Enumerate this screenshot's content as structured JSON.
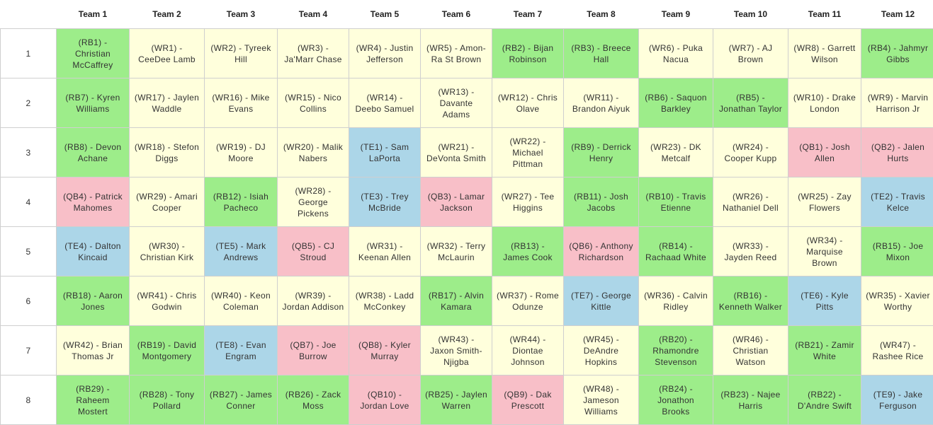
{
  "colors": {
    "WR": "#ffffdc",
    "RB": "#9ded8a",
    "TE": "#acd6e8",
    "QB": "#f8bfc8"
  },
  "teams": [
    "Team 1",
    "Team 2",
    "Team 3",
    "Team 4",
    "Team 5",
    "Team 6",
    "Team 7",
    "Team 8",
    "Team 9",
    "Team 10",
    "Team 11",
    "Team 12"
  ],
  "rounds": [
    {
      "label": "1",
      "picks": [
        {
          "text": "(RB1) - Christian McCaffrey",
          "pos": "RB"
        },
        {
          "text": "(WR1) - CeeDee Lamb",
          "pos": "WR"
        },
        {
          "text": "(WR2) - Tyreek Hill",
          "pos": "WR"
        },
        {
          "text": "(WR3) - Ja'Marr Chase",
          "pos": "WR"
        },
        {
          "text": "(WR4) - Justin Jefferson",
          "pos": "WR"
        },
        {
          "text": "(WR5) - Amon-Ra St Brown",
          "pos": "WR"
        },
        {
          "text": "(RB2) - Bijan Robinson",
          "pos": "RB"
        },
        {
          "text": "(RB3) - Breece Hall",
          "pos": "RB"
        },
        {
          "text": "(WR6) - Puka Nacua",
          "pos": "WR"
        },
        {
          "text": "(WR7) - AJ Brown",
          "pos": "WR"
        },
        {
          "text": "(WR8) - Garrett Wilson",
          "pos": "WR"
        },
        {
          "text": "(RB4) - Jahmyr Gibbs",
          "pos": "RB"
        }
      ]
    },
    {
      "label": "2",
      "picks": [
        {
          "text": "(RB7) - Kyren Williams",
          "pos": "RB"
        },
        {
          "text": "(WR17) - Jaylen Waddle",
          "pos": "WR"
        },
        {
          "text": "(WR16) - Mike Evans",
          "pos": "WR"
        },
        {
          "text": "(WR15) - Nico Collins",
          "pos": "WR"
        },
        {
          "text": "(WR14) - Deebo Samuel",
          "pos": "WR"
        },
        {
          "text": "(WR13) - Davante Adams",
          "pos": "WR"
        },
        {
          "text": "(WR12) - Chris Olave",
          "pos": "WR"
        },
        {
          "text": "(WR11) - Brandon Aiyuk",
          "pos": "WR"
        },
        {
          "text": "(RB6) - Saquon Barkley",
          "pos": "RB"
        },
        {
          "text": "(RB5) - Jonathan Taylor",
          "pos": "RB"
        },
        {
          "text": "(WR10) - Drake London",
          "pos": "WR"
        },
        {
          "text": "(WR9) - Marvin Harrison Jr",
          "pos": "WR"
        }
      ]
    },
    {
      "label": "3",
      "picks": [
        {
          "text": "(RB8) - Devon Achane",
          "pos": "RB"
        },
        {
          "text": "(WR18) - Stefon Diggs",
          "pos": "WR"
        },
        {
          "text": "(WR19) - DJ Moore",
          "pos": "WR"
        },
        {
          "text": "(WR20) - Malik Nabers",
          "pos": "WR"
        },
        {
          "text": "(TE1) - Sam LaPorta",
          "pos": "TE"
        },
        {
          "text": "(WR21) - DeVonta Smith",
          "pos": "WR"
        },
        {
          "text": "(WR22) - Michael Pittman",
          "pos": "WR"
        },
        {
          "text": "(RB9) - Derrick Henry",
          "pos": "RB"
        },
        {
          "text": "(WR23) - DK Metcalf",
          "pos": "WR"
        },
        {
          "text": "(WR24) - Cooper Kupp",
          "pos": "WR"
        },
        {
          "text": "(QB1) - Josh Allen",
          "pos": "QB"
        },
        {
          "text": "(QB2) - Jalen Hurts",
          "pos": "QB"
        }
      ]
    },
    {
      "label": "4",
      "picks": [
        {
          "text": "(QB4) - Patrick Mahomes",
          "pos": "QB"
        },
        {
          "text": "(WR29) - Amari Cooper",
          "pos": "WR"
        },
        {
          "text": "(RB12) - Isiah Pacheco",
          "pos": "RB"
        },
        {
          "text": "(WR28) - George Pickens",
          "pos": "WR"
        },
        {
          "text": "(TE3) - Trey McBride",
          "pos": "TE"
        },
        {
          "text": "(QB3) - Lamar Jackson",
          "pos": "QB"
        },
        {
          "text": "(WR27) - Tee Higgins",
          "pos": "WR"
        },
        {
          "text": "(RB11) - Josh Jacobs",
          "pos": "RB"
        },
        {
          "text": "(RB10) - Travis Etienne",
          "pos": "RB"
        },
        {
          "text": "(WR26) - Nathaniel Dell",
          "pos": "WR"
        },
        {
          "text": "(WR25) - Zay Flowers",
          "pos": "WR"
        },
        {
          "text": "(TE2) - Travis Kelce",
          "pos": "TE"
        }
      ]
    },
    {
      "label": "5",
      "picks": [
        {
          "text": "(TE4) - Dalton Kincaid",
          "pos": "TE"
        },
        {
          "text": "(WR30) - Christian Kirk",
          "pos": "WR"
        },
        {
          "text": "(TE5) - Mark Andrews",
          "pos": "TE"
        },
        {
          "text": "(QB5) - CJ Stroud",
          "pos": "QB"
        },
        {
          "text": "(WR31) - Keenan Allen",
          "pos": "WR"
        },
        {
          "text": "(WR32) - Terry McLaurin",
          "pos": "WR"
        },
        {
          "text": "(RB13) - James Cook",
          "pos": "RB"
        },
        {
          "text": "(QB6) - Anthony Richardson",
          "pos": "QB"
        },
        {
          "text": "(RB14) - Rachaad White",
          "pos": "RB"
        },
        {
          "text": "(WR33) - Jayden Reed",
          "pos": "WR"
        },
        {
          "text": "(WR34) - Marquise Brown",
          "pos": "WR"
        },
        {
          "text": "(RB15) - Joe Mixon",
          "pos": "RB"
        }
      ]
    },
    {
      "label": "6",
      "picks": [
        {
          "text": "(RB18) - Aaron Jones",
          "pos": "RB"
        },
        {
          "text": "(WR41) - Chris Godwin",
          "pos": "WR"
        },
        {
          "text": "(WR40) - Keon Coleman",
          "pos": "WR"
        },
        {
          "text": "(WR39) - Jordan Addison",
          "pos": "WR"
        },
        {
          "text": "(WR38) - Ladd McConkey",
          "pos": "WR"
        },
        {
          "text": "(RB17) - Alvin Kamara",
          "pos": "RB"
        },
        {
          "text": "(WR37) - Rome Odunze",
          "pos": "WR"
        },
        {
          "text": "(TE7) - George Kittle",
          "pos": "TE"
        },
        {
          "text": "(WR36) - Calvin Ridley",
          "pos": "WR"
        },
        {
          "text": "(RB16) - Kenneth Walker",
          "pos": "RB"
        },
        {
          "text": "(TE6) - Kyle Pitts",
          "pos": "TE"
        },
        {
          "text": "(WR35) - Xavier Worthy",
          "pos": "WR"
        }
      ]
    },
    {
      "label": "7",
      "picks": [
        {
          "text": "(WR42) - Brian Thomas Jr",
          "pos": "WR"
        },
        {
          "text": "(RB19) - David Montgomery",
          "pos": "RB"
        },
        {
          "text": "(TE8) - Evan Engram",
          "pos": "TE"
        },
        {
          "text": "(QB7) - Joe Burrow",
          "pos": "QB"
        },
        {
          "text": "(QB8) - Kyler Murray",
          "pos": "QB"
        },
        {
          "text": "(WR43) - Jaxon Smith-Njigba",
          "pos": "WR"
        },
        {
          "text": "(WR44) - Diontae Johnson",
          "pos": "WR"
        },
        {
          "text": "(WR45) - DeAndre Hopkins",
          "pos": "WR"
        },
        {
          "text": "(RB20) - Rhamondre Stevenson",
          "pos": "RB"
        },
        {
          "text": "(WR46) - Christian Watson",
          "pos": "WR"
        },
        {
          "text": "(RB21) - Zamir White",
          "pos": "RB"
        },
        {
          "text": "(WR47) - Rashee Rice",
          "pos": "WR"
        }
      ]
    },
    {
      "label": "8",
      "picks": [
        {
          "text": "(RB29) - Raheem Mostert",
          "pos": "RB"
        },
        {
          "text": "(RB28) - Tony Pollard",
          "pos": "RB"
        },
        {
          "text": "(RB27) - James Conner",
          "pos": "RB"
        },
        {
          "text": "(RB26) - Zack Moss",
          "pos": "RB"
        },
        {
          "text": "(QB10) - Jordan Love",
          "pos": "QB"
        },
        {
          "text": "(RB25) - Jaylen Warren",
          "pos": "RB"
        },
        {
          "text": "(QB9) - Dak Prescott",
          "pos": "QB"
        },
        {
          "text": "(WR48) - Jameson Williams",
          "pos": "WR"
        },
        {
          "text": "(RB24) - Jonathon Brooks",
          "pos": "RB"
        },
        {
          "text": "(RB23) - Najee Harris",
          "pos": "RB"
        },
        {
          "text": "(RB22) - D'Andre Swift",
          "pos": "RB"
        },
        {
          "text": "(TE9) - Jake Ferguson",
          "pos": "TE"
        }
      ]
    }
  ]
}
